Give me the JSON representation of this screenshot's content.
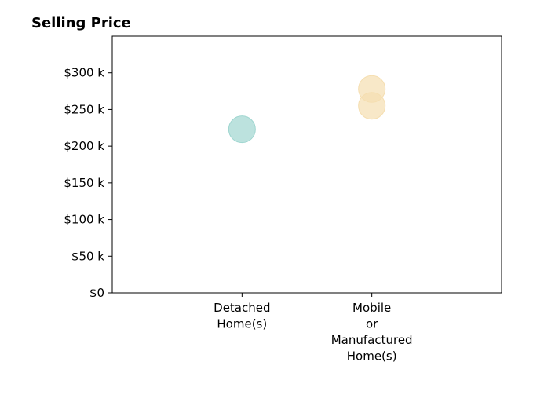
{
  "chart_data": {
    "type": "scatter",
    "title": "Selling Price",
    "xlabel": "",
    "ylabel": "",
    "categories": [
      [
        "Detached",
        "Home(s)"
      ],
      [
        "Mobile",
        "or",
        "Manufactured",
        "Home(s)"
      ]
    ],
    "xlim": [
      -1,
      2
    ],
    "ylim": [
      0,
      350000
    ],
    "yticks": [
      0,
      50000,
      100000,
      150000,
      200000,
      250000,
      300000
    ],
    "ytick_labels": [
      "$0",
      "$50 k",
      "$100 k",
      "$150 k",
      "$200 k",
      "$250 k",
      "$300 k"
    ],
    "grid": false,
    "points": [
      {
        "category": 0,
        "value": 223000,
        "color": "#9fd6d0"
      },
      {
        "category": 1,
        "value": 278000,
        "color": "#f5deb0"
      },
      {
        "category": 1,
        "value": 255000,
        "color": "#f5deb0"
      }
    ]
  }
}
